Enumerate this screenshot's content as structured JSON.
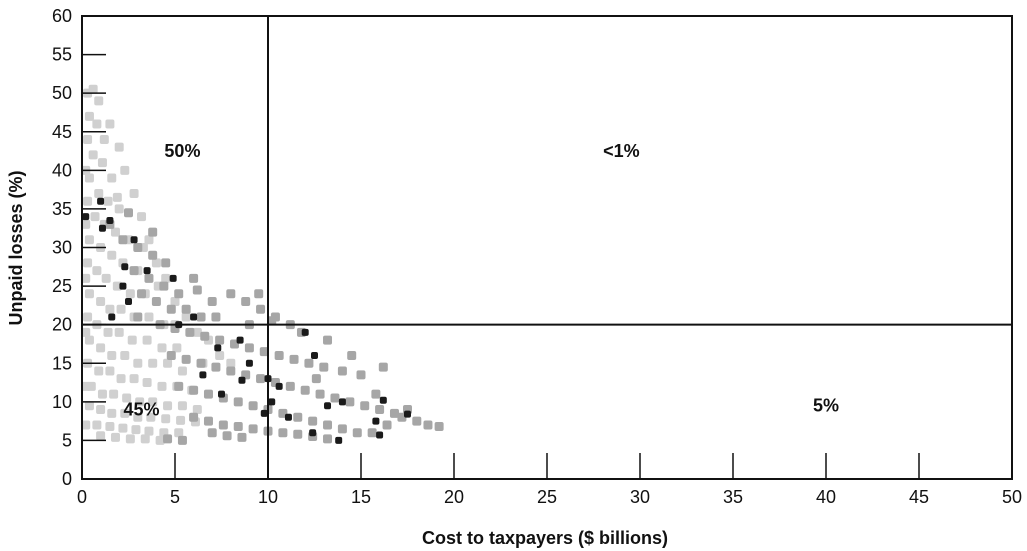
{
  "chart_data": {
    "type": "scatter",
    "xlabel": "Cost to taxpayers ($ billions)",
    "ylabel": "Unpaid losses (%)",
    "xlim": [
      0,
      50
    ],
    "ylim": [
      0,
      60
    ],
    "x_ticks": [
      0,
      5,
      10,
      15,
      20,
      25,
      30,
      35,
      40,
      45,
      50
    ],
    "y_ticks": [
      0,
      5,
      10,
      15,
      20,
      25,
      30,
      35,
      40,
      45,
      50,
      55,
      60
    ],
    "x_tick_labels": [
      "0",
      "5",
      "10",
      "15",
      "20",
      "25",
      "30",
      "35",
      "40",
      "45",
      "50"
    ],
    "y_tick_labels": [
      "0",
      "5",
      "10",
      "15",
      "20",
      "25",
      "30",
      "35",
      "40",
      "45",
      "50",
      "55",
      "60"
    ],
    "grid": false,
    "reference_lines": {
      "x": 10,
      "y": 20
    },
    "quadrant_labels": [
      {
        "text": "50%",
        "x": 5.4,
        "y": 42.5
      },
      {
        "text": "<1%",
        "x": 29.0,
        "y": 42.5
      },
      {
        "text": "45%",
        "x": 3.2,
        "y": 9.0
      },
      {
        "text": "5%",
        "x": 40.0,
        "y": 9.5
      }
    ],
    "colors": {
      "light": "#d0d0d0",
      "medium": "#a6a6a6",
      "dark": "#1a1a1a",
      "axis": "#111111"
    },
    "series": [
      {
        "color": "light",
        "points": [
          [
            0.3,
            50
          ],
          [
            0.6,
            50.5
          ],
          [
            0.9,
            49
          ],
          [
            0.4,
            47
          ],
          [
            0.8,
            46
          ],
          [
            1.2,
            44
          ],
          [
            0.3,
            44
          ],
          [
            0.6,
            42
          ],
          [
            1.1,
            41
          ],
          [
            1.6,
            39
          ],
          [
            0.4,
            39
          ],
          [
            0.9,
            37
          ],
          [
            1.4,
            36
          ],
          [
            2.0,
            35
          ],
          [
            0.3,
            36
          ],
          [
            0.7,
            34
          ],
          [
            1.2,
            33
          ],
          [
            1.8,
            32
          ],
          [
            2.5,
            31
          ],
          [
            0.4,
            31
          ],
          [
            1.0,
            30
          ],
          [
            1.6,
            29
          ],
          [
            2.2,
            28
          ],
          [
            3.0,
            27
          ],
          [
            0.3,
            28
          ],
          [
            0.8,
            27
          ],
          [
            1.3,
            26
          ],
          [
            1.9,
            25
          ],
          [
            2.6,
            24
          ],
          [
            3.4,
            24
          ],
          [
            0.4,
            24
          ],
          [
            1.0,
            23
          ],
          [
            1.5,
            22
          ],
          [
            2.1,
            22
          ],
          [
            2.8,
            21
          ],
          [
            3.6,
            21
          ],
          [
            4.4,
            20
          ],
          [
            0.3,
            21
          ],
          [
            0.8,
            20
          ],
          [
            1.4,
            19
          ],
          [
            2.0,
            19
          ],
          [
            2.7,
            18
          ],
          [
            3.5,
            18
          ],
          [
            4.3,
            17
          ],
          [
            5.1,
            17
          ],
          [
            0.4,
            18
          ],
          [
            1.0,
            17
          ],
          [
            1.6,
            16
          ],
          [
            2.3,
            16
          ],
          [
            3.0,
            15
          ],
          [
            3.8,
            15
          ],
          [
            4.6,
            15
          ],
          [
            5.4,
            14
          ],
          [
            0.3,
            15
          ],
          [
            0.9,
            14
          ],
          [
            1.5,
            14
          ],
          [
            2.1,
            13
          ],
          [
            2.8,
            13
          ],
          [
            3.5,
            12.5
          ],
          [
            4.3,
            12
          ],
          [
            5.1,
            12
          ],
          [
            5.9,
            11.5
          ],
          [
            0.5,
            12
          ],
          [
            1.1,
            11
          ],
          [
            1.7,
            11
          ],
          [
            2.4,
            10.5
          ],
          [
            3.1,
            10
          ],
          [
            3.8,
            10
          ],
          [
            4.6,
            9.5
          ],
          [
            5.4,
            9.5
          ],
          [
            6.2,
            9
          ],
          [
            0.4,
            9.5
          ],
          [
            1.0,
            9
          ],
          [
            1.6,
            8.5
          ],
          [
            2.3,
            8.5
          ],
          [
            3.0,
            8
          ],
          [
            3.7,
            8
          ],
          [
            4.5,
            7.8
          ],
          [
            5.3,
            7.6
          ],
          [
            6.1,
            7.4
          ],
          [
            0.8,
            7
          ],
          [
            1.5,
            6.8
          ],
          [
            2.2,
            6.6
          ],
          [
            2.9,
            6.4
          ],
          [
            3.6,
            6.2
          ],
          [
            4.4,
            6
          ],
          [
            5.2,
            6
          ],
          [
            1.0,
            5.6
          ],
          [
            1.8,
            5.4
          ],
          [
            2.6,
            5.2
          ],
          [
            3.4,
            5.2
          ],
          [
            4.2,
            5.0
          ],
          [
            2.0,
            43
          ],
          [
            1.5,
            46
          ],
          [
            2.3,
            40
          ],
          [
            2.8,
            37
          ],
          [
            3.2,
            34
          ],
          [
            3.6,
            31
          ],
          [
            4.0,
            28
          ],
          [
            4.5,
            26
          ],
          [
            5.0,
            23
          ],
          [
            5.6,
            21
          ],
          [
            6.2,
            19
          ],
          [
            6.8,
            18
          ],
          [
            7.4,
            16
          ],
          [
            8.0,
            15
          ],
          [
            0.2,
            40
          ],
          [
            0.2,
            33
          ],
          [
            0.2,
            26
          ],
          [
            0.2,
            19
          ],
          [
            0.2,
            12
          ],
          [
            0.2,
            7
          ],
          [
            1.9,
            36.5
          ],
          [
            3.3,
            30
          ],
          [
            4.1,
            25
          ],
          [
            5.0,
            20
          ],
          [
            6.5,
            15
          ]
        ]
      },
      {
        "color": "medium",
        "points": [
          [
            1.5,
            33
          ],
          [
            2.2,
            31
          ],
          [
            3.0,
            30
          ],
          [
            3.8,
            29
          ],
          [
            4.5,
            28
          ],
          [
            2.8,
            27
          ],
          [
            3.6,
            26
          ],
          [
            4.4,
            25
          ],
          [
            5.2,
            24
          ],
          [
            3.2,
            24
          ],
          [
            4.0,
            23
          ],
          [
            4.8,
            22
          ],
          [
            5.6,
            22
          ],
          [
            6.4,
            21
          ],
          [
            7.2,
            21
          ],
          [
            8.0,
            24
          ],
          [
            8.8,
            23
          ],
          [
            9.6,
            22
          ],
          [
            10.4,
            21
          ],
          [
            11.2,
            20
          ],
          [
            4.2,
            20
          ],
          [
            5.0,
            19.5
          ],
          [
            5.8,
            19
          ],
          [
            6.6,
            18.5
          ],
          [
            7.4,
            18
          ],
          [
            8.2,
            17.5
          ],
          [
            9.0,
            17
          ],
          [
            9.8,
            16.5
          ],
          [
            10.6,
            16
          ],
          [
            11.4,
            15.5
          ],
          [
            12.2,
            15
          ],
          [
            13.0,
            14.5
          ],
          [
            14.0,
            14
          ],
          [
            15.0,
            13.5
          ],
          [
            4.8,
            16
          ],
          [
            5.6,
            15.5
          ],
          [
            6.4,
            15
          ],
          [
            7.2,
            14.5
          ],
          [
            8.0,
            14
          ],
          [
            8.8,
            13.5
          ],
          [
            9.6,
            13
          ],
          [
            10.4,
            12.5
          ],
          [
            11.2,
            12
          ],
          [
            12.0,
            11.5
          ],
          [
            12.8,
            11
          ],
          [
            13.6,
            10.5
          ],
          [
            14.4,
            10
          ],
          [
            15.2,
            9.5
          ],
          [
            16.0,
            9
          ],
          [
            16.8,
            8.5
          ],
          [
            5.2,
            12
          ],
          [
            6.0,
            11.5
          ],
          [
            6.8,
            11
          ],
          [
            7.6,
            10.5
          ],
          [
            8.4,
            10
          ],
          [
            9.2,
            9.5
          ],
          [
            10.0,
            9
          ],
          [
            10.8,
            8.5
          ],
          [
            11.6,
            8
          ],
          [
            12.4,
            7.5
          ],
          [
            13.2,
            7
          ],
          [
            14.0,
            6.5
          ],
          [
            14.8,
            6
          ],
          [
            15.6,
            6
          ],
          [
            16.4,
            7
          ],
          [
            17.2,
            8
          ],
          [
            18.0,
            7.5
          ],
          [
            18.6,
            7
          ],
          [
            19.2,
            6.8
          ],
          [
            6.0,
            8
          ],
          [
            6.8,
            7.5
          ],
          [
            7.6,
            7
          ],
          [
            8.4,
            6.8
          ],
          [
            9.2,
            6.5
          ],
          [
            10.0,
            6.2
          ],
          [
            10.8,
            6
          ],
          [
            11.6,
            5.8
          ],
          [
            12.4,
            5.5
          ],
          [
            13.2,
            5.2
          ],
          [
            7.0,
            6
          ],
          [
            7.8,
            5.6
          ],
          [
            8.6,
            5.4
          ],
          [
            4.6,
            5.2
          ],
          [
            5.4,
            5.0
          ],
          [
            3.0,
            21
          ],
          [
            6.0,
            26
          ],
          [
            7.0,
            23
          ],
          [
            9.5,
            24
          ],
          [
            10.2,
            20.5
          ],
          [
            11.8,
            19
          ],
          [
            13.2,
            18
          ],
          [
            14.5,
            16
          ],
          [
            16.2,
            14.5
          ],
          [
            17.5,
            9
          ],
          [
            15.8,
            11
          ],
          [
            12.6,
            13
          ],
          [
            9.0,
            20
          ],
          [
            6.2,
            24.5
          ],
          [
            3.8,
            32
          ],
          [
            2.5,
            34.5
          ]
        ]
      },
      {
        "color": "dark",
        "points": [
          [
            0.2,
            34
          ],
          [
            1.0,
            36
          ],
          [
            1.5,
            33.5
          ],
          [
            2.8,
            31
          ],
          [
            1.1,
            32.5
          ],
          [
            2.3,
            27.5
          ],
          [
            3.5,
            27
          ],
          [
            2.2,
            25
          ],
          [
            4.9,
            26
          ],
          [
            2.5,
            23
          ],
          [
            1.6,
            21
          ],
          [
            5.2,
            20
          ],
          [
            6.0,
            21
          ],
          [
            7.3,
            17
          ],
          [
            8.5,
            18
          ],
          [
            9.0,
            15
          ],
          [
            10.0,
            13
          ],
          [
            10.6,
            12
          ],
          [
            8.6,
            12.8
          ],
          [
            10.2,
            10
          ],
          [
            11.1,
            8
          ],
          [
            12.0,
            19
          ],
          [
            12.5,
            16
          ],
          [
            13.2,
            9.5
          ],
          [
            14.0,
            10
          ],
          [
            12.4,
            6
          ],
          [
            13.8,
            5
          ],
          [
            15.8,
            7.5
          ],
          [
            16.2,
            10.2
          ],
          [
            17.5,
            8.4
          ],
          [
            16.0,
            5.7
          ],
          [
            6.5,
            13.5
          ],
          [
            7.5,
            11
          ],
          [
            9.8,
            8.5
          ]
        ]
      }
    ]
  }
}
